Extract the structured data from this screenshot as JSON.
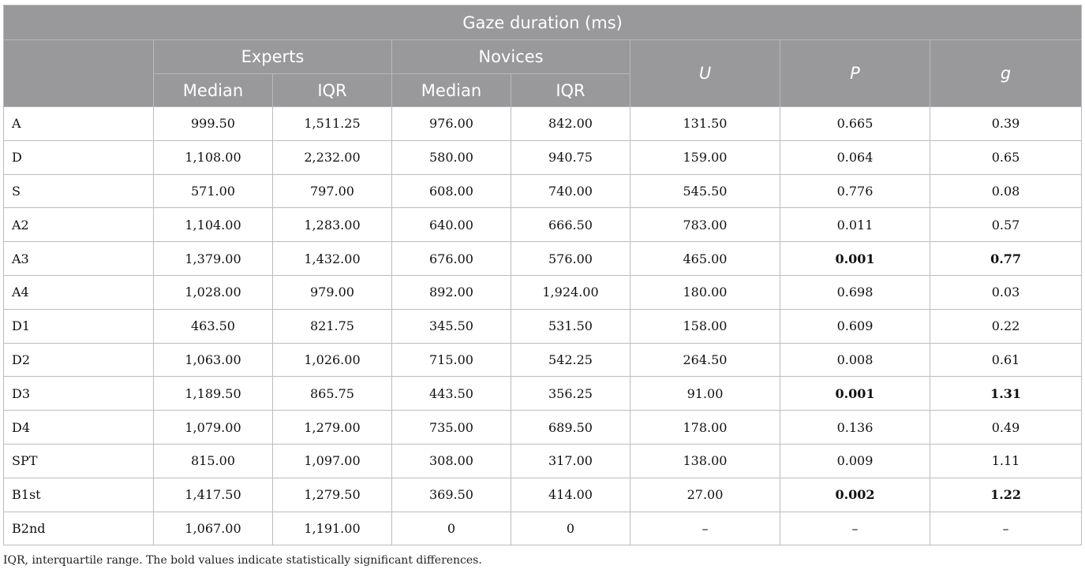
{
  "table": {
    "title": "Gaze duration (ms)",
    "groups": [
      "Experts",
      "Novices"
    ],
    "stats": [
      "U",
      "P",
      "g"
    ],
    "subheaders": [
      "Median",
      "IQR",
      "Median",
      "IQR"
    ],
    "rows": [
      {
        "label": "A",
        "exp_median": "999.50",
        "exp_iqr": "1,511.25",
        "nov_median": "976.00",
        "nov_iqr": "842.00",
        "u": "131.50",
        "p": "0.665",
        "g": "0.39",
        "p_bold": false,
        "g_bold": false
      },
      {
        "label": "D",
        "exp_median": "1,108.00",
        "exp_iqr": "2,232.00",
        "nov_median": "580.00",
        "nov_iqr": "940.75",
        "u": "159.00",
        "p": "0.064",
        "g": "0.65",
        "p_bold": false,
        "g_bold": false
      },
      {
        "label": "S",
        "exp_median": "571.00",
        "exp_iqr": "797.00",
        "nov_median": "608.00",
        "nov_iqr": "740.00",
        "u": "545.50",
        "p": "0.776",
        "g": "0.08",
        "p_bold": false,
        "g_bold": false
      },
      {
        "label": "A2",
        "exp_median": "1,104.00",
        "exp_iqr": "1,283.00",
        "nov_median": "640.00",
        "nov_iqr": "666.50",
        "u": "783.00",
        "p": "0.011",
        "g": "0.57",
        "p_bold": false,
        "g_bold": false
      },
      {
        "label": "A3",
        "exp_median": "1,379.00",
        "exp_iqr": "1,432.00",
        "nov_median": "676.00",
        "nov_iqr": "576.00",
        "u": "465.00",
        "p": "0.001",
        "g": "0.77",
        "p_bold": true,
        "g_bold": true
      },
      {
        "label": "A4",
        "exp_median": "1,028.00",
        "exp_iqr": "979.00",
        "nov_median": "892.00",
        "nov_iqr": "1,924.00",
        "u": "180.00",
        "p": "0.698",
        "g": "0.03",
        "p_bold": false,
        "g_bold": false
      },
      {
        "label": "D1",
        "exp_median": "463.50",
        "exp_iqr": "821.75",
        "nov_median": "345.50",
        "nov_iqr": "531.50",
        "u": "158.00",
        "p": "0.609",
        "g": "0.22",
        "p_bold": false,
        "g_bold": false
      },
      {
        "label": "D2",
        "exp_median": "1,063.00",
        "exp_iqr": "1,026.00",
        "nov_median": "715.00",
        "nov_iqr": "542.25",
        "u": "264.50",
        "p": "0.008",
        "g": "0.61",
        "p_bold": false,
        "g_bold": false
      },
      {
        "label": "D3",
        "exp_median": "1,189.50",
        "exp_iqr": "865.75",
        "nov_median": "443.50",
        "nov_iqr": "356.25",
        "u": "91.00",
        "p": "0.001",
        "g": "1.31",
        "p_bold": true,
        "g_bold": true
      },
      {
        "label": "D4",
        "exp_median": "1,079.00",
        "exp_iqr": "1,279.00",
        "nov_median": "735.00",
        "nov_iqr": "689.50",
        "u": "178.00",
        "p": "0.136",
        "g": "0.49",
        "p_bold": false,
        "g_bold": false
      },
      {
        "label": "SPT",
        "exp_median": "815.00",
        "exp_iqr": "1,097.00",
        "nov_median": "308.00",
        "nov_iqr": "317.00",
        "u": "138.00",
        "p": "0.009",
        "g": "1.11",
        "p_bold": false,
        "g_bold": false
      },
      {
        "label": "B1st",
        "exp_median": "1,417.50",
        "exp_iqr": "1,279.50",
        "nov_median": "369.50",
        "nov_iqr": "414.00",
        "u": "27.00",
        "p": "0.002",
        "g": "1.22",
        "p_bold": true,
        "g_bold": true
      },
      {
        "label": "B2nd",
        "exp_median": "1,067.00",
        "exp_iqr": "1,191.00",
        "nov_median": "0",
        "nov_iqr": "0",
        "u": "–",
        "p": "–",
        "g": "–",
        "p_bold": false,
        "g_bold": false
      }
    ]
  },
  "footnote": "IQR, interquartile range. The bold values indicate statistically significant differences.",
  "colors": {
    "header_bg": "#99999b",
    "header_text": "#ffffff",
    "cell_border": "#bcbcbc"
  }
}
